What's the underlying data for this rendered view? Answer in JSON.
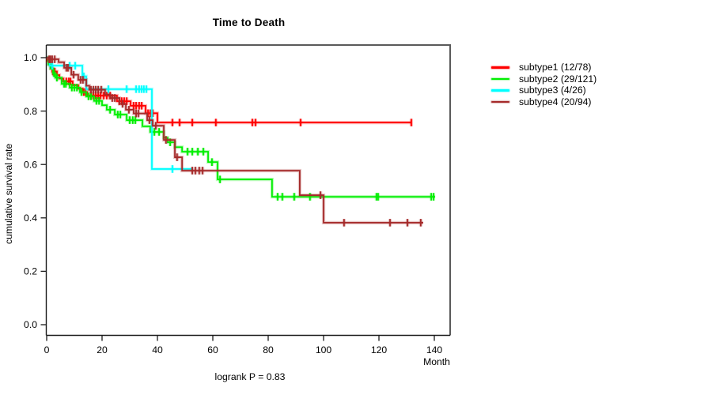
{
  "chart_data": {
    "type": "line",
    "subtype": "kaplan-meier-step-survival",
    "title": "Time to Death",
    "xlabel": "Month",
    "ylabel": "cumulative survival rate",
    "annotation": "logrank P = 0.83",
    "x_ticks": [
      0,
      20,
      40,
      60,
      80,
      100,
      120,
      140
    ],
    "y_ticks": [
      0.0,
      0.2,
      0.4,
      0.6,
      0.8,
      1.0
    ],
    "xlim": [
      0,
      146
    ],
    "ylim": [
      0.0,
      1.05
    ],
    "grid": false,
    "legend_position": "right-outside",
    "axis_color": "#1a1a1a",
    "box_shadow_color": "#5a5a5a",
    "series": [
      {
        "name": "subtype1",
        "legend_label": "subtype1 (12/78)",
        "events": 12,
        "total": 78,
        "color": "#ff0000",
        "final_rate": 0.757,
        "steps": [
          [
            0,
            1.0
          ],
          [
            0.3,
            0.987
          ],
          [
            0.9,
            0.974
          ],
          [
            1.4,
            0.961
          ],
          [
            2,
            0.948
          ],
          [
            3.7,
            0.935
          ],
          [
            4.6,
            0.922
          ],
          [
            6,
            0.911
          ],
          [
            9.4,
            0.897
          ],
          [
            11.4,
            0.884
          ],
          [
            12.9,
            0.871
          ],
          [
            14.6,
            0.858
          ],
          [
            25.4,
            0.837
          ],
          [
            30.3,
            0.82
          ],
          [
            35.7,
            0.792
          ],
          [
            40,
            0.757
          ],
          [
            131.7,
            0.757
          ]
        ],
        "censors": [
          [
            2.3,
            0.948
          ],
          [
            2.9,
            0.948
          ],
          [
            7.1,
            0.911
          ],
          [
            8,
            0.911
          ],
          [
            8.6,
            0.911
          ],
          [
            13.4,
            0.871
          ],
          [
            14,
            0.871
          ],
          [
            16,
            0.858
          ],
          [
            16.9,
            0.858
          ],
          [
            17.7,
            0.858
          ],
          [
            18.6,
            0.858
          ],
          [
            19.4,
            0.858
          ],
          [
            20.6,
            0.858
          ],
          [
            21.7,
            0.858
          ],
          [
            22.9,
            0.858
          ],
          [
            26.3,
            0.837
          ],
          [
            27.1,
            0.837
          ],
          [
            28,
            0.837
          ],
          [
            28.9,
            0.837
          ],
          [
            31.4,
            0.82
          ],
          [
            32.3,
            0.82
          ],
          [
            33.4,
            0.82
          ],
          [
            34.3,
            0.82
          ],
          [
            36.6,
            0.792
          ],
          [
            37.4,
            0.792
          ],
          [
            38.3,
            0.792
          ],
          [
            45.4,
            0.757
          ],
          [
            48,
            0.757
          ],
          [
            52.6,
            0.757
          ],
          [
            61.1,
            0.757
          ],
          [
            74.3,
            0.757
          ],
          [
            75.4,
            0.757
          ],
          [
            91.7,
            0.757
          ],
          [
            131.7,
            0.757
          ]
        ]
      },
      {
        "name": "subtype2",
        "legend_label": "subtype2 (29/121)",
        "events": 29,
        "total": 121,
        "color": "#00ee00",
        "final_rate": 0.479,
        "steps": [
          [
            0,
            1.0
          ],
          [
            0.6,
            0.975
          ],
          [
            1.4,
            0.959
          ],
          [
            2.3,
            0.942
          ],
          [
            3.1,
            0.925
          ],
          [
            5.4,
            0.902
          ],
          [
            8.3,
            0.888
          ],
          [
            12,
            0.871
          ],
          [
            14.3,
            0.855
          ],
          [
            17.1,
            0.838
          ],
          [
            20,
            0.822
          ],
          [
            21.7,
            0.805
          ],
          [
            24.6,
            0.787
          ],
          [
            28.9,
            0.766
          ],
          [
            34.6,
            0.743
          ],
          [
            37.4,
            0.722
          ],
          [
            42.3,
            0.7
          ],
          [
            43.7,
            0.683
          ],
          [
            46.3,
            0.665
          ],
          [
            48.9,
            0.648
          ],
          [
            58.3,
            0.609
          ],
          [
            61.7,
            0.544
          ],
          [
            81.4,
            0.479
          ],
          [
            140.3,
            0.479
          ]
        ],
        "censors": [
          [
            2.6,
            0.942
          ],
          [
            3.7,
            0.925
          ],
          [
            6.3,
            0.902
          ],
          [
            6.9,
            0.902
          ],
          [
            9.1,
            0.888
          ],
          [
            10,
            0.888
          ],
          [
            10.9,
            0.888
          ],
          [
            12.6,
            0.871
          ],
          [
            15.1,
            0.855
          ],
          [
            16,
            0.855
          ],
          [
            18,
            0.838
          ],
          [
            18.9,
            0.838
          ],
          [
            22.9,
            0.805
          ],
          [
            25.7,
            0.787
          ],
          [
            26.6,
            0.787
          ],
          [
            30,
            0.766
          ],
          [
            31.1,
            0.766
          ],
          [
            32,
            0.766
          ],
          [
            38.9,
            0.722
          ],
          [
            40.6,
            0.722
          ],
          [
            44.6,
            0.683
          ],
          [
            50.9,
            0.648
          ],
          [
            52.6,
            0.648
          ],
          [
            54.6,
            0.648
          ],
          [
            56.6,
            0.648
          ],
          [
            59.7,
            0.609
          ],
          [
            62.6,
            0.544
          ],
          [
            83.4,
            0.479
          ],
          [
            85.1,
            0.479
          ],
          [
            89.4,
            0.479
          ],
          [
            95.1,
            0.479
          ],
          [
            119.1,
            0.479
          ],
          [
            119.7,
            0.479
          ],
          [
            138.9,
            0.479
          ],
          [
            139.7,
            0.479
          ]
        ]
      },
      {
        "name": "subtype3",
        "legend_label": "subtype3 (4/26)",
        "events": 4,
        "total": 26,
        "color": "#00ffff",
        "final_rate": 0.583,
        "steps": [
          [
            0,
            1.0
          ],
          [
            1.1,
            0.97
          ],
          [
            12.9,
            0.93
          ],
          [
            14.3,
            0.882
          ],
          [
            38,
            0.583
          ],
          [
            52.6,
            0.583
          ]
        ],
        "censors": [
          [
            2,
            0.97
          ],
          [
            8.3,
            0.97
          ],
          [
            10.3,
            0.97
          ],
          [
            13.4,
            0.93
          ],
          [
            22.3,
            0.882
          ],
          [
            28.9,
            0.882
          ],
          [
            32.3,
            0.882
          ],
          [
            33.4,
            0.882
          ],
          [
            34.3,
            0.882
          ],
          [
            35.1,
            0.882
          ],
          [
            36,
            0.882
          ],
          [
            45.4,
            0.583
          ]
        ]
      },
      {
        "name": "subtype4",
        "legend_label": "subtype4 (20/94)",
        "events": 20,
        "total": 94,
        "color": "#a52a2a",
        "final_rate": 0.382,
        "steps": [
          [
            0,
            1.0
          ],
          [
            0.6,
            0.994
          ],
          [
            4.3,
            0.983
          ],
          [
            6.3,
            0.962
          ],
          [
            8.9,
            0.936
          ],
          [
            11.4,
            0.917
          ],
          [
            14.3,
            0.895
          ],
          [
            15.4,
            0.88
          ],
          [
            21.1,
            0.862
          ],
          [
            22.9,
            0.849
          ],
          [
            26.3,
            0.827
          ],
          [
            28.6,
            0.805
          ],
          [
            31.4,
            0.791
          ],
          [
            36.3,
            0.766
          ],
          [
            38.3,
            0.745
          ],
          [
            42.3,
            0.692
          ],
          [
            46.3,
            0.627
          ],
          [
            48.9,
            0.577
          ],
          [
            91.4,
            0.485
          ],
          [
            100,
            0.382
          ],
          [
            136,
            0.382
          ]
        ],
        "censors": [
          [
            0.9,
            0.994
          ],
          [
            1.4,
            0.994
          ],
          [
            2,
            0.994
          ],
          [
            2.9,
            0.994
          ],
          [
            7.1,
            0.962
          ],
          [
            7.7,
            0.962
          ],
          [
            9.7,
            0.936
          ],
          [
            12.3,
            0.917
          ],
          [
            13.1,
            0.917
          ],
          [
            16,
            0.88
          ],
          [
            16.9,
            0.88
          ],
          [
            17.7,
            0.88
          ],
          [
            18.6,
            0.88
          ],
          [
            19.7,
            0.88
          ],
          [
            23.7,
            0.849
          ],
          [
            24.6,
            0.849
          ],
          [
            27.4,
            0.827
          ],
          [
            29.7,
            0.805
          ],
          [
            32.3,
            0.791
          ],
          [
            33.1,
            0.791
          ],
          [
            37.1,
            0.766
          ],
          [
            39.4,
            0.745
          ],
          [
            43.1,
            0.692
          ],
          [
            47.1,
            0.627
          ],
          [
            52.6,
            0.577
          ],
          [
            53.7,
            0.577
          ],
          [
            55.1,
            0.577
          ],
          [
            56.3,
            0.577
          ],
          [
            98.9,
            0.485
          ],
          [
            107.4,
            0.382
          ],
          [
            124,
            0.382
          ],
          [
            130.3,
            0.382
          ],
          [
            135.1,
            0.382
          ]
        ]
      }
    ]
  }
}
